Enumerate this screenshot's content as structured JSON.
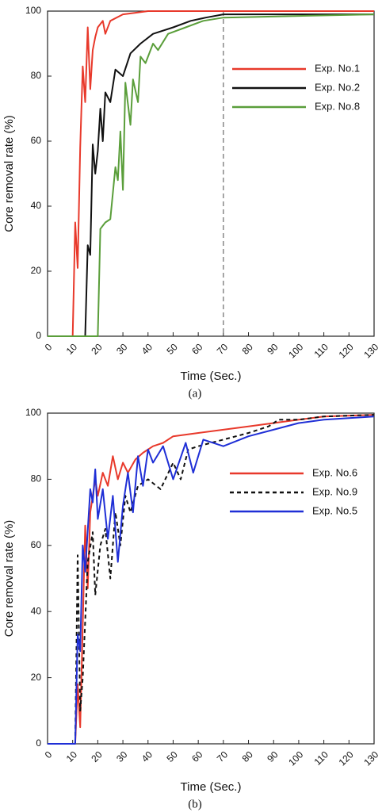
{
  "chart_data": [
    {
      "type": "line",
      "caption": "(a)",
      "xlabel": "Time (Sec.)",
      "ylabel": "Core removal rate (%)",
      "xlim": [
        0,
        130
      ],
      "ylim": [
        0,
        100
      ],
      "xticks": [
        0,
        10,
        20,
        30,
        40,
        50,
        60,
        70,
        80,
        90,
        100,
        110,
        120,
        130
      ],
      "yticks": [
        0,
        20,
        40,
        60,
        80,
        100
      ],
      "reference_line_x": 70,
      "series": [
        {
          "name": "Exp. No.1",
          "color": "#e8392b",
          "linestyle": "solid",
          "x": [
            0,
            10,
            11,
            12,
            13,
            14,
            15,
            16,
            17,
            18,
            19,
            20,
            22,
            23,
            25,
            30,
            35,
            40,
            60,
            80,
            100,
            130
          ],
          "values": [
            0,
            0,
            35,
            21,
            58,
            83,
            72,
            95,
            76,
            88,
            92,
            95,
            97,
            93,
            97,
            99,
            99.5,
            100,
            100,
            100,
            100,
            100
          ]
        },
        {
          "name": "Exp. No.2",
          "color": "#111111",
          "linestyle": "solid",
          "x": [
            0,
            15,
            16,
            17,
            18,
            19,
            20,
            21,
            22,
            23,
            25,
            27,
            30,
            33,
            37,
            42,
            50,
            57,
            63,
            70,
            100,
            130
          ],
          "values": [
            0,
            0,
            28,
            25,
            59,
            50,
            57,
            70,
            60,
            75,
            72,
            82,
            80,
            87,
            90,
            93,
            95,
            97,
            98,
            99,
            99,
            99
          ]
        },
        {
          "name": "Exp. No.8",
          "color": "#5a9e3a",
          "linestyle": "solid",
          "x": [
            0,
            20,
            21,
            23,
            25,
            27,
            28,
            29,
            30,
            31,
            33,
            34,
            36,
            37,
            39,
            42,
            44,
            48,
            55,
            62,
            70,
            100,
            130
          ],
          "values": [
            0,
            0,
            33,
            35,
            36,
            52,
            48,
            63,
            45,
            78,
            65,
            79,
            72,
            86,
            84,
            90,
            88,
            93,
            95,
            97,
            98,
            98.5,
            99
          ]
        }
      ]
    },
    {
      "type": "line",
      "caption": "(b)",
      "xlabel": "Time (Sec.)",
      "ylabel": "Core removal rate (%)",
      "xlim": [
        0,
        130
      ],
      "ylim": [
        0,
        100
      ],
      "xticks": [
        0,
        10,
        20,
        30,
        40,
        50,
        60,
        70,
        80,
        90,
        100,
        110,
        120,
        130
      ],
      "yticks": [
        0,
        20,
        40,
        60,
        80,
        100
      ],
      "series": [
        {
          "name": "Exp. No.6",
          "color": "#e8392b",
          "linestyle": "solid",
          "x": [
            0,
            11,
            12,
            13,
            15,
            16,
            17,
            19,
            20,
            22,
            24,
            26,
            28,
            30,
            32,
            35,
            38,
            42,
            46,
            50,
            60,
            70,
            80,
            90,
            100,
            110,
            130
          ],
          "values": [
            0,
            0,
            18,
            5,
            66,
            47,
            70,
            80,
            75,
            82,
            78,
            87,
            80,
            85,
            82,
            86,
            88,
            90,
            91,
            93,
            94,
            95,
            96,
            97,
            98,
            99,
            99.5
          ]
        },
        {
          "name": "Exp. No.9",
          "color": "#111111",
          "linestyle": "dashed",
          "x": [
            0,
            11,
            12,
            13,
            14,
            16,
            18,
            19,
            21,
            23,
            25,
            27,
            29,
            31,
            33,
            36,
            40,
            45,
            50,
            53,
            56,
            60,
            70,
            80,
            88,
            92,
            100,
            110,
            130
          ],
          "values": [
            0,
            0,
            57,
            10,
            20,
            55,
            64,
            45,
            60,
            65,
            50,
            70,
            60,
            75,
            70,
            78,
            80,
            77,
            85,
            80,
            89,
            90,
            92,
            94,
            96,
            98,
            98,
            99,
            99.5
          ]
        },
        {
          "name": "Exp. No.5",
          "color": "#1f2fd6",
          "linestyle": "solid",
          "x": [
            0,
            11,
            12,
            13,
            14,
            15,
            17,
            18,
            19,
            20,
            22,
            24,
            26,
            28,
            30,
            32,
            34,
            36,
            38,
            40,
            42,
            46,
            50,
            55,
            58,
            62,
            70,
            80,
            90,
            100,
            110,
            130
          ],
          "values": [
            0,
            0,
            33,
            28,
            60,
            52,
            77,
            73,
            83,
            68,
            77,
            62,
            75,
            55,
            72,
            82,
            70,
            87,
            78,
            89,
            85,
            90,
            80,
            91,
            82,
            92,
            90,
            93,
            95,
            97,
            98,
            99
          ]
        }
      ]
    }
  ]
}
